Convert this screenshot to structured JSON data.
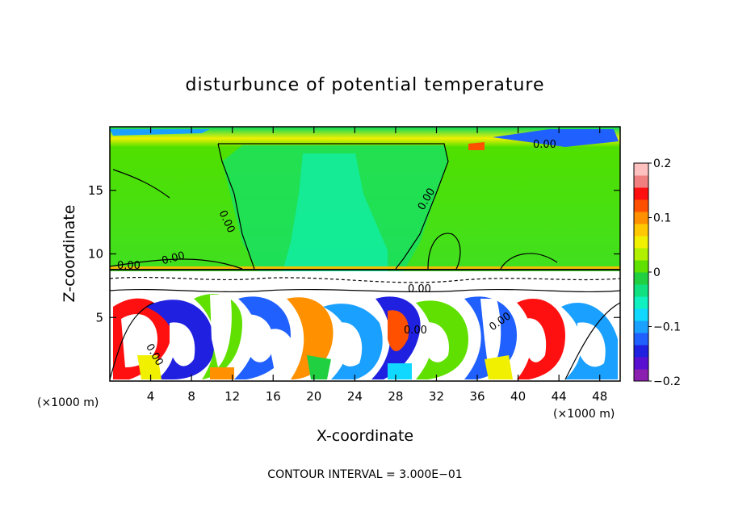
{
  "chart_data": {
    "type": "heatmap",
    "title": "disturbunce of potential temperature",
    "xlabel": "X-coordinate",
    "ylabel": "Z-coordinate",
    "x_unit": "(×1000 m)",
    "z_unit": "(×1000 m)",
    "xlim": [
      0,
      50
    ],
    "ylim": [
      0,
      20
    ],
    "x_ticks": [
      4,
      8,
      12,
      16,
      20,
      24,
      28,
      32,
      36,
      40,
      44,
      48
    ],
    "y_ticks": [
      5,
      10,
      15
    ],
    "colorbar": {
      "range": [
        -0.2,
        0.2
      ],
      "ticks": [
        0.2,
        0.1,
        0,
        -0.1,
        -0.2
      ],
      "tick_labels": [
        "0.2",
        "0.1",
        "0",
        "−0.1",
        "−0.2"
      ],
      "colors": [
        "#8a1fb0",
        "#5a10d0",
        "#2020e0",
        "#2060ff",
        "#1aa0ff",
        "#10d8ff",
        "#10f0c0",
        "#10e080",
        "#20d040",
        "#60e000",
        "#b0f000",
        "#f0f000",
        "#ffc800",
        "#ff9000",
        "#ff5000",
        "#ff1010",
        "#f08080",
        "#ffc0c0"
      ]
    },
    "contour_labels": [
      "0.00",
      "0.00",
      "0.00",
      "0.00",
      "0.00",
      "0.00",
      "0.00",
      "0.00",
      "0.00"
    ],
    "contour_interval_text": "CONTOUR INTERVAL = 3.000E−01"
  }
}
